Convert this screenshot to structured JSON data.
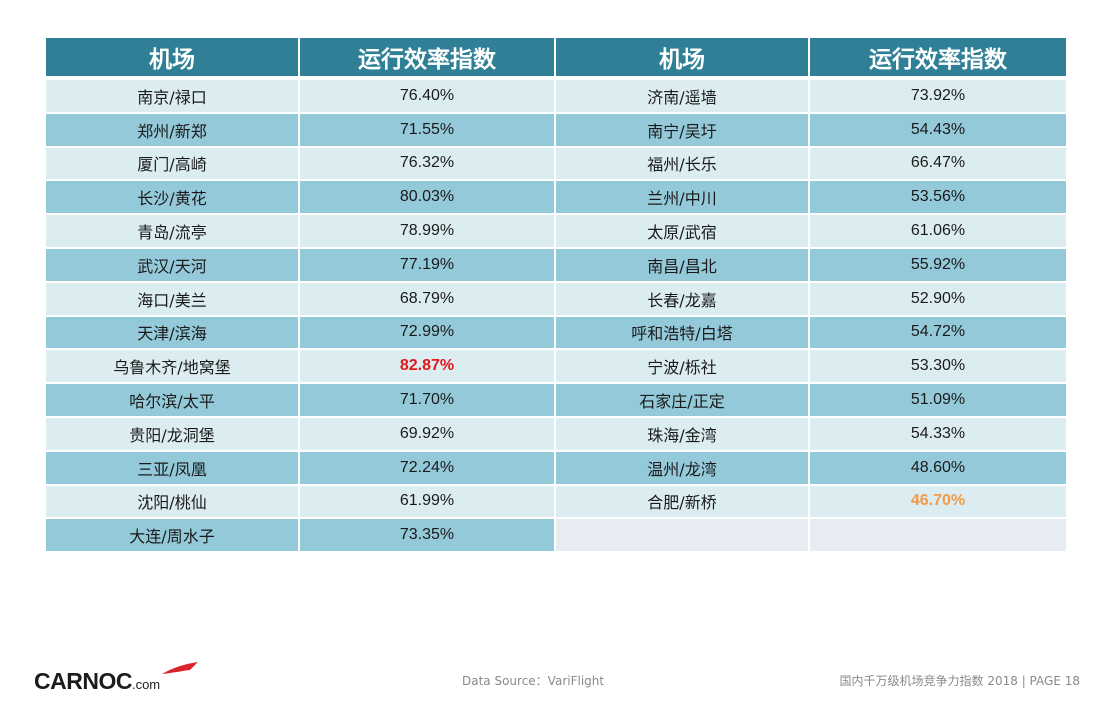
{
  "table": {
    "headers": [
      "机场",
      "运行效率指数",
      "机场",
      "运行效率指数"
    ],
    "left": [
      {
        "airport": "南京/禄口",
        "index": "76.40%"
      },
      {
        "airport": "郑州/新郑",
        "index": "71.55%"
      },
      {
        "airport": "厦门/高崎",
        "index": "76.32%"
      },
      {
        "airport": "长沙/黄花",
        "index": "80.03%"
      },
      {
        "airport": "青岛/流亭",
        "index": "78.99%"
      },
      {
        "airport": "武汉/天河",
        "index": "77.19%"
      },
      {
        "airport": "海口/美兰",
        "index": "68.79%"
      },
      {
        "airport": "天津/滨海",
        "index": "72.99%"
      },
      {
        "airport": "乌鲁木齐/地窝堡",
        "index": "82.87%",
        "highlight": "max",
        "color": "#e01818"
      },
      {
        "airport": "哈尔滨/太平",
        "index": "71.70%"
      },
      {
        "airport": "贵阳/龙洞堡",
        "index": "69.92%"
      },
      {
        "airport": "三亚/凤凰",
        "index": "72.24%"
      },
      {
        "airport": "沈阳/桃仙",
        "index": "61.99%"
      },
      {
        "airport": "大连/周水子",
        "index": "73.35%"
      }
    ],
    "right": [
      {
        "airport": "济南/遥墙",
        "index": "73.92%"
      },
      {
        "airport": "南宁/吴圩",
        "index": "54.43%"
      },
      {
        "airport": "福州/长乐",
        "index": "66.47%"
      },
      {
        "airport": "兰州/中川",
        "index": "53.56%"
      },
      {
        "airport": "太原/武宿",
        "index": "61.06%"
      },
      {
        "airport": "南昌/昌北",
        "index": "55.92%"
      },
      {
        "airport": "长春/龙嘉",
        "index": "52.90%"
      },
      {
        "airport": "呼和浩特/白塔",
        "index": "54.72%"
      },
      {
        "airport": "宁波/栎社",
        "index": "53.30%"
      },
      {
        "airport": "石家庄/正定",
        "index": "51.09%"
      },
      {
        "airport": "珠海/金湾",
        "index": "54.33%"
      },
      {
        "airport": "温州/龙湾",
        "index": "48.60%"
      },
      {
        "airport": "合肥/新桥",
        "index": "46.70%",
        "highlight": "min",
        "color": "#f19a47"
      }
    ]
  },
  "colors": {
    "header_bg": "#2f8097",
    "row_light": "#dcedf2",
    "row_dark": "#93c9d9",
    "empty_cell": "#e6ecf2"
  },
  "footer": {
    "logo_text": "CARNOC",
    "logo_suffix": ".com",
    "source": "Data Source：VariFlight",
    "report": "国内千万级机场竞争力指数 2018 |   PAGE 18"
  }
}
